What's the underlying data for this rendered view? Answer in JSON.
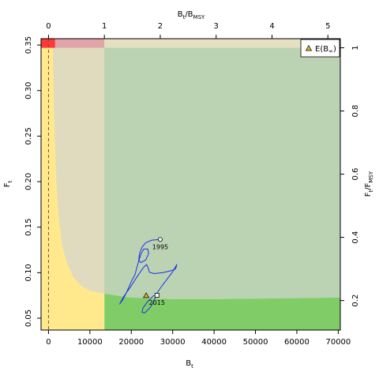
{
  "chart_data": {
    "type": "line",
    "xlabel": "B",
    "xlabel_sub": "t",
    "ylabel": "F",
    "ylabel_sub": "t",
    "top_label_main": "B",
    "top_label_sub1": "t",
    "top_label_mid": "/B",
    "top_label_sub2": "MSY",
    "right_label_main": "F",
    "right_label_sub1": "t",
    "right_label_mid": "/F",
    "right_label_sub2": "MSY",
    "xlim": [
      -1800,
      70500
    ],
    "ylim": [
      0.037,
      0.357
    ],
    "x_ticks": [
      0,
      10000,
      20000,
      30000,
      40000,
      50000,
      60000,
      70000
    ],
    "y_ticks": [
      0.05,
      0.1,
      0.15,
      0.2,
      0.25,
      0.3,
      0.35
    ],
    "y_tick_labels": [
      "0.05",
      "0.10",
      "0.15",
      "0.20",
      "0.25",
      "0.30",
      "0.35"
    ],
    "top_ticks": [
      0,
      1,
      2,
      3,
      4,
      5
    ],
    "right_ticks": [
      0.2,
      0.4,
      0.6,
      0.8,
      1
    ],
    "right_tick_labels": [
      "0.2",
      "0.4",
      "0.6",
      "0.8",
      "1"
    ],
    "bmsy": 13500,
    "fmsy": 0.347,
    "legend": {
      "label": "E(B",
      "sub": "∞",
      "close": ")",
      "placement": "top-right"
    },
    "colors": {
      "yellow": "#FFE98C",
      "beige": "#E0DBBF",
      "sage": "#BBD2B3",
      "green": "#80CD67",
      "pink": "#E1A4A8",
      "red": "#FF3838",
      "track": "#1B32E6",
      "triangle": "#DDB72C"
    },
    "zone_boundary": [
      [
        1000,
        0.357
      ],
      [
        1200,
        0.31
      ],
      [
        1500,
        0.25
      ],
      [
        1900,
        0.2
      ],
      [
        2500,
        0.16
      ],
      [
        3300,
        0.13
      ],
      [
        4500,
        0.11
      ],
      [
        6000,
        0.095
      ],
      [
        8000,
        0.085
      ],
      [
        10500,
        0.0795
      ],
      [
        13500,
        0.077
      ],
      [
        17000,
        0.0745
      ],
      [
        20000,
        0.0726
      ],
      [
        25000,
        0.0716
      ],
      [
        30000,
        0.0711
      ],
      [
        40000,
        0.0711
      ],
      [
        50000,
        0.0714
      ],
      [
        60000,
        0.072
      ],
      [
        70500,
        0.0726
      ]
    ],
    "trajectory": [
      [
        27000,
        0.1365
      ],
      [
        25000,
        0.1358
      ],
      [
        23500,
        0.133
      ],
      [
        22600,
        0.128
      ],
      [
        22000,
        0.121
      ],
      [
        21800,
        0.114
      ],
      [
        22300,
        0.111
      ],
      [
        23500,
        0.114
      ],
      [
        24200,
        0.121
      ],
      [
        24000,
        0.126
      ],
      [
        23000,
        0.126
      ],
      [
        22300,
        0.12
      ],
      [
        21800,
        0.113
      ],
      [
        21300,
        0.105
      ],
      [
        20900,
        0.098
      ],
      [
        20200,
        0.092
      ],
      [
        19500,
        0.085
      ],
      [
        18700,
        0.077
      ],
      [
        17900,
        0.07
      ],
      [
        17200,
        0.0655
      ],
      [
        18200,
        0.074
      ],
      [
        19600,
        0.083
      ],
      [
        21600,
        0.097
      ],
      [
        23000,
        0.106
      ],
      [
        23700,
        0.109
      ],
      [
        24000,
        0.106
      ],
      [
        24400,
        0.1005
      ],
      [
        25500,
        0.099
      ],
      [
        27500,
        0.1
      ],
      [
        29500,
        0.102
      ],
      [
        30700,
        0.104
      ],
      [
        31000,
        0.109
      ],
      [
        30800,
        0.1075
      ],
      [
        30000,
        0.101
      ],
      [
        28500,
        0.092
      ],
      [
        27000,
        0.083
      ],
      [
        26000,
        0.076
      ],
      [
        25400,
        0.068
      ],
      [
        24600,
        0.062
      ],
      [
        23300,
        0.056
      ],
      [
        22600,
        0.0563
      ],
      [
        22800,
        0.061
      ],
      [
        24000,
        0.0685
      ],
      [
        25300,
        0.0745
      ],
      [
        26200,
        0.0752
      ]
    ],
    "start_point": [
      27000,
      0.1365
    ],
    "end_point": [
      26200,
      0.0752
    ],
    "triangle_point": [
      23600,
      0.0748
    ],
    "year_start": "1995",
    "year_end": "2015"
  }
}
